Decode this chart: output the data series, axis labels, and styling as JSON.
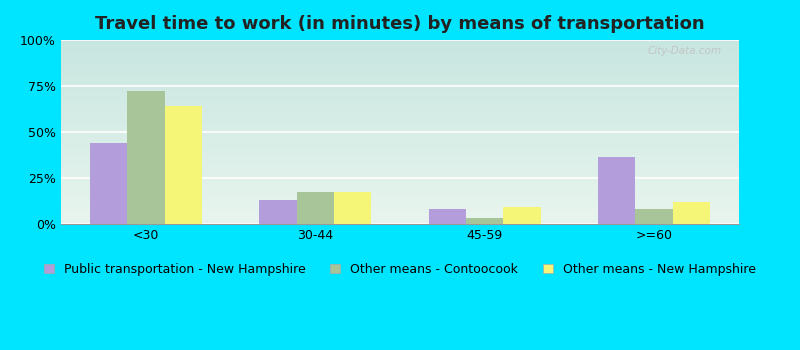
{
  "title": "Travel time to work (in minutes) by means of transportation",
  "categories": [
    "<30",
    "30-44",
    "45-59",
    ">=60"
  ],
  "series": [
    {
      "name": "Public transportation - New Hampshire",
      "color": "#b39ddb",
      "values": [
        44,
        13,
        8,
        36
      ]
    },
    {
      "name": "Other means - Contoocook",
      "color": "#a8c59a",
      "values": [
        72,
        17,
        3,
        8
      ]
    },
    {
      "name": "Other means - New Hampshire",
      "color": "#f5f577",
      "values": [
        64,
        17,
        9,
        12
      ]
    }
  ],
  "ylim": [
    0,
    100
  ],
  "yticks": [
    0,
    25,
    50,
    75,
    100
  ],
  "ytick_labels": [
    "0%",
    "25%",
    "50%",
    "75%",
    "100%"
  ],
  "bar_width": 0.22,
  "outer_bg": "#00e5ff",
  "plot_bg_top": "#c8e6e0",
  "plot_bg_bottom": "#e8f5ee",
  "grid_color": "#ffffff",
  "title_fontsize": 13,
  "tick_fontsize": 9,
  "legend_fontsize": 9,
  "watermark": "City-Data.com"
}
